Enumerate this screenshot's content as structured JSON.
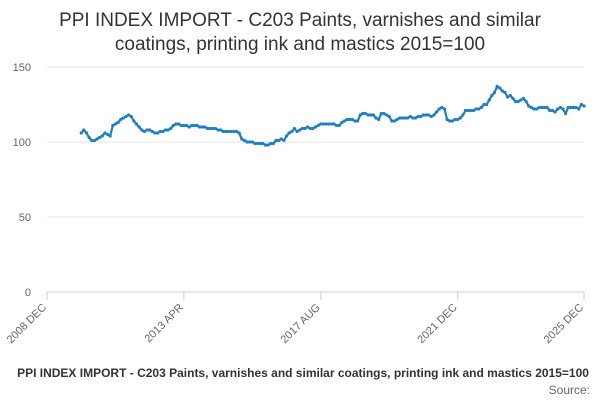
{
  "chart_data": {
    "type": "line",
    "title_lines": [
      "PPI INDEX IMPORT - C203 Paints, varnishes and similar",
      "coatings, printing ink and mastics 2015=100"
    ],
    "xlabel": "",
    "ylabel": "",
    "ylim": [
      0,
      150
    ],
    "yticks": [
      0,
      50,
      100,
      150
    ],
    "x_range": [
      "2008-12",
      "2025-12"
    ],
    "xticks": [
      {
        "label": "2008 DEC",
        "date": "2008-12"
      },
      {
        "label": "2013 APR",
        "date": "2013-04"
      },
      {
        "label": "2017 AUG",
        "date": "2017-08"
      },
      {
        "label": "2021 DEC",
        "date": "2021-12"
      },
      {
        "label": "2025 DEC",
        "date": "2025-12"
      }
    ],
    "grid": {
      "horizontal": true,
      "vertical": false
    },
    "series_color": "#1f7fbf",
    "legend_label": "PPI INDEX IMPORT - C203 Paints, varnishes and similar coatings, printing ink and mastics 2015=100",
    "source_label": "Source:",
    "series": [
      {
        "points": [
          [
            "2010-01",
            106
          ],
          [
            "2010-02",
            108
          ],
          [
            "2010-03",
            106
          ],
          [
            "2010-04",
            103
          ],
          [
            "2010-05",
            101
          ],
          [
            "2010-06",
            101
          ],
          [
            "2010-07",
            102
          ],
          [
            "2010-08",
            103
          ],
          [
            "2010-09",
            104
          ],
          [
            "2010-10",
            106
          ],
          [
            "2010-11",
            105
          ],
          [
            "2010-12",
            104
          ],
          [
            "2011-01",
            111
          ],
          [
            "2011-02",
            112
          ],
          [
            "2011-03",
            113
          ],
          [
            "2011-04",
            115
          ],
          [
            "2011-05",
            116
          ],
          [
            "2011-06",
            117
          ],
          [
            "2011-07",
            118
          ],
          [
            "2011-08",
            117
          ],
          [
            "2011-09",
            114
          ],
          [
            "2011-10",
            112
          ],
          [
            "2011-11",
            110
          ],
          [
            "2011-12",
            108
          ],
          [
            "2012-01",
            107
          ],
          [
            "2012-02",
            108
          ],
          [
            "2012-03",
            108
          ],
          [
            "2012-04",
            107
          ],
          [
            "2012-05",
            106
          ],
          [
            "2012-06",
            106
          ],
          [
            "2012-07",
            107
          ],
          [
            "2012-08",
            107
          ],
          [
            "2012-09",
            108
          ],
          [
            "2012-10",
            108
          ],
          [
            "2012-11",
            109
          ],
          [
            "2012-12",
            111
          ],
          [
            "2013-01",
            112
          ],
          [
            "2013-02",
            112
          ],
          [
            "2013-03",
            111
          ],
          [
            "2013-04",
            111
          ],
          [
            "2013-05",
            111
          ],
          [
            "2013-06",
            110
          ],
          [
            "2013-07",
            111
          ],
          [
            "2013-08",
            111
          ],
          [
            "2013-09",
            111
          ],
          [
            "2013-10",
            110
          ],
          [
            "2013-11",
            110
          ],
          [
            "2013-12",
            110
          ],
          [
            "2014-01",
            109
          ],
          [
            "2014-02",
            109
          ],
          [
            "2014-03",
            109
          ],
          [
            "2014-04",
            109
          ],
          [
            "2014-05",
            108
          ],
          [
            "2014-06",
            108
          ],
          [
            "2014-07",
            107
          ],
          [
            "2014-08",
            107
          ],
          [
            "2014-09",
            107
          ],
          [
            "2014-10",
            107
          ],
          [
            "2014-11",
            107
          ],
          [
            "2014-12",
            107
          ],
          [
            "2015-01",
            106
          ],
          [
            "2015-02",
            102
          ],
          [
            "2015-03",
            101
          ],
          [
            "2015-04",
            100
          ],
          [
            "2015-05",
            100
          ],
          [
            "2015-06",
            100
          ],
          [
            "2015-07",
            99
          ],
          [
            "2015-08",
            99
          ],
          [
            "2015-09",
            99
          ],
          [
            "2015-10",
            99
          ],
          [
            "2015-11",
            98
          ],
          [
            "2015-12",
            98
          ],
          [
            "2016-01",
            99
          ],
          [
            "2016-02",
            99
          ],
          [
            "2016-03",
            101
          ],
          [
            "2016-04",
            101
          ],
          [
            "2016-05",
            102
          ],
          [
            "2016-06",
            101
          ],
          [
            "2016-07",
            104
          ],
          [
            "2016-08",
            106
          ],
          [
            "2016-09",
            107
          ],
          [
            "2016-10",
            109
          ],
          [
            "2016-11",
            107
          ],
          [
            "2016-12",
            108
          ],
          [
            "2017-01",
            109
          ],
          [
            "2017-02",
            109
          ],
          [
            "2017-03",
            110
          ],
          [
            "2017-04",
            109
          ],
          [
            "2017-05",
            109
          ],
          [
            "2017-06",
            110
          ],
          [
            "2017-07",
            111
          ],
          [
            "2017-08",
            112
          ],
          [
            "2017-09",
            112
          ],
          [
            "2017-10",
            112
          ],
          [
            "2017-11",
            112
          ],
          [
            "2017-12",
            112
          ],
          [
            "2018-01",
            112
          ],
          [
            "2018-02",
            111
          ],
          [
            "2018-03",
            111
          ],
          [
            "2018-04",
            113
          ],
          [
            "2018-05",
            114
          ],
          [
            "2018-06",
            115
          ],
          [
            "2018-07",
            115
          ],
          [
            "2018-08",
            115
          ],
          [
            "2018-09",
            114
          ],
          [
            "2018-10",
            114
          ],
          [
            "2018-11",
            118
          ],
          [
            "2018-12",
            119
          ],
          [
            "2019-01",
            119
          ],
          [
            "2019-02",
            118
          ],
          [
            "2019-03",
            118
          ],
          [
            "2019-04",
            118
          ],
          [
            "2019-05",
            116
          ],
          [
            "2019-06",
            115
          ],
          [
            "2019-07",
            119
          ],
          [
            "2019-08",
            119
          ],
          [
            "2019-09",
            118
          ],
          [
            "2019-10",
            117
          ],
          [
            "2019-11",
            114
          ],
          [
            "2019-12",
            114
          ],
          [
            "2020-01",
            115
          ],
          [
            "2020-02",
            116
          ],
          [
            "2020-03",
            116
          ],
          [
            "2020-04",
            116
          ],
          [
            "2020-05",
            116
          ],
          [
            "2020-06",
            117
          ],
          [
            "2020-07",
            116
          ],
          [
            "2020-08",
            116
          ],
          [
            "2020-09",
            117
          ],
          [
            "2020-10",
            117
          ],
          [
            "2020-11",
            118
          ],
          [
            "2020-12",
            118
          ],
          [
            "2021-01",
            118
          ],
          [
            "2021-02",
            117
          ],
          [
            "2021-03",
            118
          ],
          [
            "2021-04",
            120
          ],
          [
            "2021-05",
            122
          ],
          [
            "2021-06",
            123
          ],
          [
            "2021-07",
            122
          ],
          [
            "2021-08",
            115
          ],
          [
            "2021-09",
            114
          ],
          [
            "2021-10",
            114
          ],
          [
            "2021-11",
            115
          ],
          [
            "2021-12",
            115
          ],
          [
            "2022-01",
            116
          ],
          [
            "2022-02",
            118
          ],
          [
            "2022-03",
            121
          ],
          [
            "2022-04",
            121
          ],
          [
            "2022-05",
            121
          ],
          [
            "2022-06",
            121
          ],
          [
            "2022-07",
            122
          ],
          [
            "2022-08",
            122
          ],
          [
            "2022-09",
            123
          ],
          [
            "2022-10",
            125
          ],
          [
            "2022-11",
            125
          ],
          [
            "2022-12",
            128
          ],
          [
            "2023-01",
            131
          ],
          [
            "2023-02",
            133
          ],
          [
            "2023-03",
            137
          ],
          [
            "2023-04",
            136
          ],
          [
            "2023-05",
            134
          ],
          [
            "2023-06",
            133
          ],
          [
            "2023-07",
            130
          ],
          [
            "2023-08",
            131
          ],
          [
            "2023-09",
            129
          ],
          [
            "2023-10",
            127
          ],
          [
            "2023-11",
            127
          ],
          [
            "2023-12",
            128
          ],
          [
            "2024-01",
            129
          ],
          [
            "2024-02",
            127
          ],
          [
            "2024-03",
            124
          ],
          [
            "2024-04",
            123
          ],
          [
            "2024-05",
            122
          ],
          [
            "2024-06",
            122
          ],
          [
            "2024-07",
            123
          ],
          [
            "2024-08",
            123
          ],
          [
            "2024-09",
            123
          ],
          [
            "2024-10",
            123
          ],
          [
            "2024-11",
            121
          ],
          [
            "2024-12",
            121
          ],
          [
            "2025-01",
            120
          ],
          [
            "2025-02",
            122
          ],
          [
            "2025-03",
            123
          ],
          [
            "2025-04",
            122
          ],
          [
            "2025-05",
            119
          ],
          [
            "2025-06",
            123
          ],
          [
            "2025-07",
            123
          ],
          [
            "2025-08",
            123
          ],
          [
            "2025-09",
            123
          ],
          [
            "2025-10",
            122
          ],
          [
            "2025-11",
            125
          ],
          [
            "2025-12",
            124
          ]
        ]
      }
    ]
  }
}
